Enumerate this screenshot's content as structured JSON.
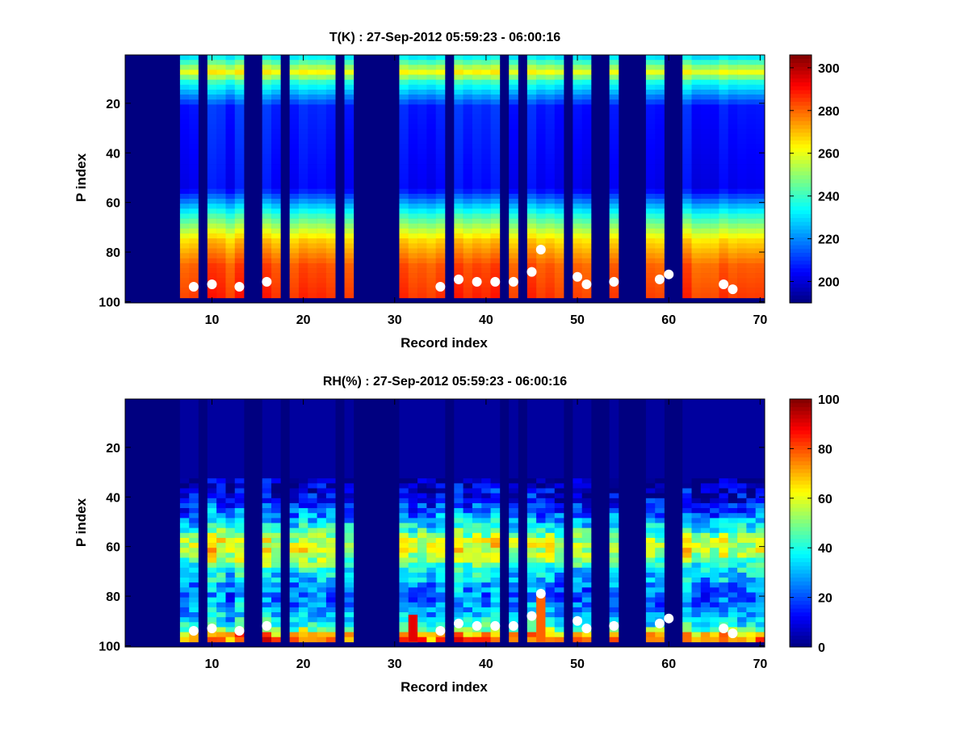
{
  "chart_data": [
    {
      "type": "heatmap",
      "title": "T(K) : 27-Sep-2012 05:59:23 - 06:00:16",
      "xlabel": "Record index",
      "ylabel": "P index",
      "xlim": [
        0.5,
        70.5
      ],
      "ylim": [
        0.5,
        100.5
      ],
      "y_reversed": true,
      "xticks": [
        10,
        20,
        30,
        40,
        50,
        60,
        70
      ],
      "yticks": [
        20,
        40,
        60,
        80,
        100
      ],
      "colormap": "jet",
      "clim": [
        190,
        306
      ],
      "colorbar_ticks": [
        200,
        220,
        240,
        260,
        280,
        300
      ],
      "columns_with_data": [
        7,
        8,
        10,
        11,
        12,
        13,
        16,
        17,
        19,
        20,
        21,
        22,
        23,
        25,
        31,
        32,
        33,
        34,
        35,
        37,
        38,
        39,
        40,
        41,
        43,
        45,
        46,
        47,
        48,
        50,
        51,
        54,
        58,
        59,
        62,
        63,
        64,
        65,
        66,
        67,
        68,
        69,
        70
      ],
      "profile_bottom_index": 98,
      "column_highlights": [],
      "markers": [
        {
          "x": 8,
          "y": 94
        },
        {
          "x": 10,
          "y": 93
        },
        {
          "x": 13,
          "y": 94
        },
        {
          "x": 16,
          "y": 92
        },
        {
          "x": 35,
          "y": 94
        },
        {
          "x": 37,
          "y": 91
        },
        {
          "x": 39,
          "y": 92
        },
        {
          "x": 41,
          "y": 92
        },
        {
          "x": 43,
          "y": 92
        },
        {
          "x": 45,
          "y": 88
        },
        {
          "x": 46,
          "y": 79
        },
        {
          "x": 50,
          "y": 90
        },
        {
          "x": 51,
          "y": 93
        },
        {
          "x": 54,
          "y": 92
        },
        {
          "x": 59,
          "y": 91
        },
        {
          "x": 60,
          "y": 89
        },
        {
          "x": 66,
          "y": 93
        },
        {
          "x": 67,
          "y": 95
        }
      ]
    },
    {
      "type": "heatmap",
      "title": "RH(%) : 27-Sep-2012 05:59:23 - 06:00:16",
      "xlabel": "Record index",
      "ylabel": "P index",
      "xlim": [
        0.5,
        70.5
      ],
      "ylim": [
        0.5,
        100.5
      ],
      "y_reversed": true,
      "xticks": [
        10,
        20,
        30,
        40,
        50,
        60,
        70
      ],
      "yticks": [
        20,
        40,
        60,
        80,
        100
      ],
      "colormap": "jet",
      "clim": [
        0,
        100
      ],
      "colorbar_ticks": [
        0,
        20,
        40,
        60,
        80,
        100
      ],
      "columns_with_data": [
        7,
        8,
        10,
        11,
        12,
        13,
        16,
        17,
        19,
        20,
        21,
        22,
        23,
        25,
        31,
        32,
        33,
        34,
        35,
        37,
        38,
        39,
        40,
        41,
        43,
        45,
        46,
        47,
        48,
        50,
        51,
        54,
        58,
        59,
        62,
        63,
        64,
        65,
        66,
        67,
        68,
        69,
        70
      ],
      "profile_bottom_index": 98,
      "column_highlights": [
        {
          "x": 46,
          "from": 80,
          "to": 98,
          "value": 78
        },
        {
          "x": 32,
          "from": 88,
          "to": 98,
          "value": 90
        }
      ],
      "markers": [
        {
          "x": 8,
          "y": 94
        },
        {
          "x": 10,
          "y": 93
        },
        {
          "x": 13,
          "y": 94
        },
        {
          "x": 16,
          "y": 92
        },
        {
          "x": 35,
          "y": 94
        },
        {
          "x": 37,
          "y": 91
        },
        {
          "x": 39,
          "y": 92
        },
        {
          "x": 41,
          "y": 92
        },
        {
          "x": 43,
          "y": 92
        },
        {
          "x": 45,
          "y": 88
        },
        {
          "x": 46,
          "y": 79
        },
        {
          "x": 50,
          "y": 90
        },
        {
          "x": 51,
          "y": 93
        },
        {
          "x": 54,
          "y": 92
        },
        {
          "x": 59,
          "y": 91
        },
        {
          "x": 60,
          "y": 89
        },
        {
          "x": 66,
          "y": 93
        },
        {
          "x": 67,
          "y": 95
        }
      ]
    }
  ]
}
